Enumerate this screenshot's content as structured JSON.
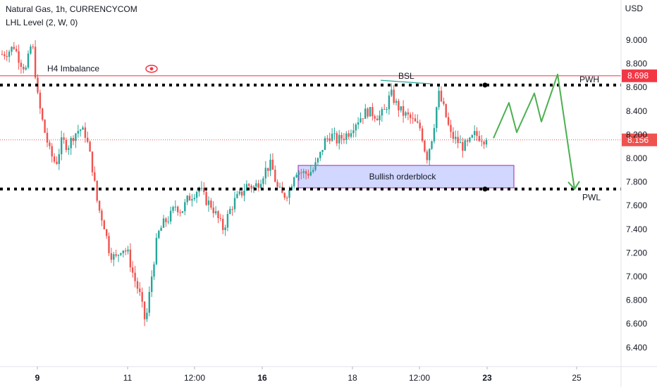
{
  "header": {
    "title": "Natural Gas, 1h, CURRENCYCOM",
    "indicator": "LHL Level (2, W, 0)"
  },
  "colors": {
    "up": "#26a69a",
    "down": "#ef5350",
    "resistance_line": "#f23645",
    "projection": "#4caf50",
    "orderblock_fill": "#c9d0ff",
    "orderblock_border": "#9c27b0",
    "bsl_line": "#26a69a",
    "eye_icon": "#f23645"
  },
  "chart_data": {
    "type": "candlestick",
    "currency": "USD",
    "ylim": [
      6.25,
      9.3
    ],
    "yticks": [
      "9.000",
      "8.800",
      "8.600",
      "8.400",
      "8.200",
      "8.000",
      "7.800",
      "7.600",
      "7.400",
      "7.200",
      "7.000",
      "6.800",
      "6.600",
      "6.400"
    ],
    "x_ticks": [
      {
        "label": "9",
        "bold": true
      },
      {
        "label": "11",
        "bold": false
      },
      {
        "label": "12:00",
        "bold": false
      },
      {
        "label": "16",
        "bold": true
      },
      {
        "label": "18",
        "bold": false
      },
      {
        "label": "12:00",
        "bold": false
      },
      {
        "label": "23",
        "bold": true
      },
      {
        "label": "25",
        "bold": false
      }
    ],
    "price_path": [
      8.88,
      8.9,
      8.95,
      8.82,
      8.75,
      9.0,
      8.5,
      8.25,
      8.05,
      7.95,
      8.15,
      8.1,
      8.2,
      8.25,
      8.2,
      7.95,
      7.6,
      7.45,
      7.2,
      7.15,
      7.25,
      7.2,
      7.0,
      6.85,
      6.6,
      7.0,
      7.35,
      7.45,
      7.5,
      7.6,
      7.55,
      7.65,
      7.7,
      7.75,
      7.65,
      7.6,
      7.5,
      7.4,
      7.55,
      7.65,
      7.7,
      7.78,
      7.75,
      7.8,
      7.9,
      7.95,
      7.75,
      7.68,
      7.72,
      7.9,
      7.88,
      7.87,
      7.9,
      8.0,
      8.15,
      8.2,
      8.15,
      8.18,
      8.22,
      8.3,
      8.35,
      8.4,
      8.38,
      8.35,
      8.4,
      8.55,
      8.45,
      8.38,
      8.35,
      8.3,
      8.25,
      8.0,
      8.2,
      8.55,
      8.4,
      8.2,
      8.15,
      8.1,
      8.12,
      8.2,
      8.18,
      8.15
    ],
    "price_label": "8.156",
    "last_price": 8.156,
    "pwh": {
      "label": "PWH",
      "value": 8.62
    },
    "pwl": {
      "label": "PWL",
      "value": 7.74
    },
    "h4_imbalance": {
      "label": "H4 Imbalance",
      "value": 8.698,
      "badge": "8.698"
    },
    "bsl": {
      "label": "BSL",
      "value": 8.63
    },
    "orderblock": {
      "label": "Bullish orderblock",
      "top": 7.94,
      "bottom": 7.75
    },
    "projection_path": [
      8.17,
      8.47,
      8.22,
      8.55,
      8.31,
      8.71,
      7.74
    ]
  }
}
